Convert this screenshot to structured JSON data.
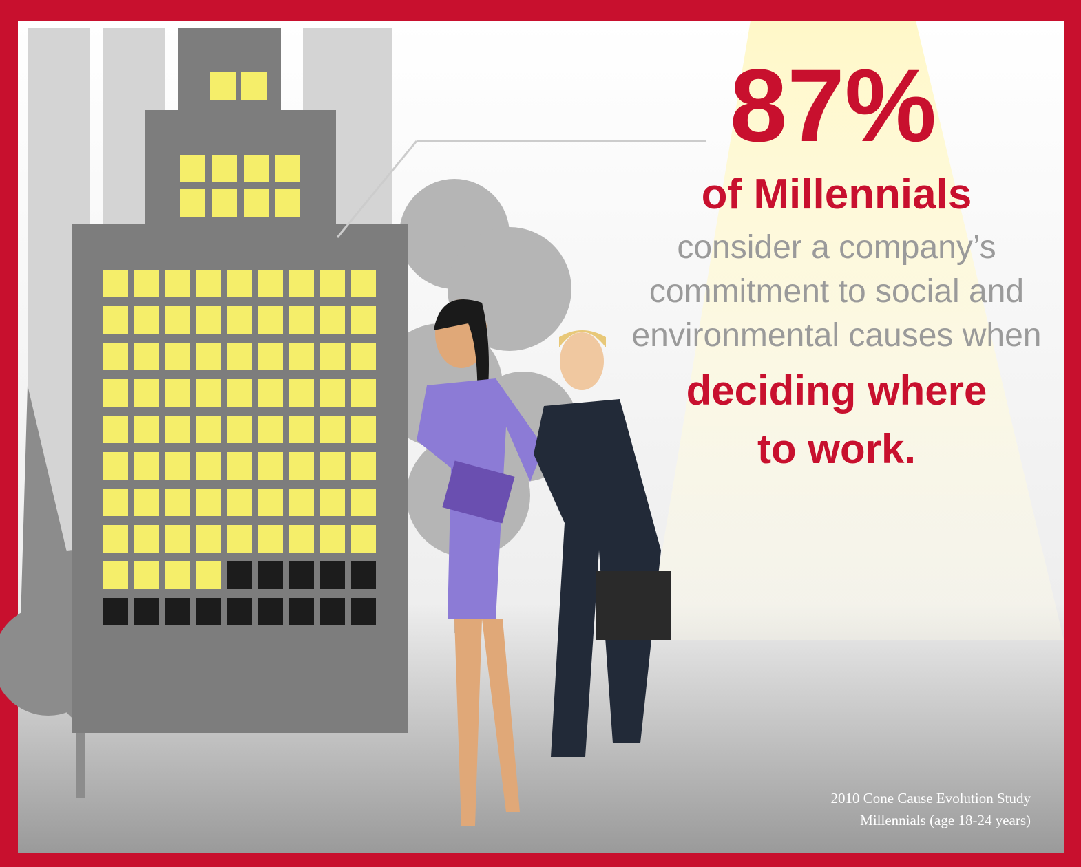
{
  "headline": {
    "stat": "87%",
    "subject": "of Millennials",
    "body_lines": [
      "consider a company’s",
      "commitment to social and",
      "environmental causes when"
    ],
    "emphasis_lines": [
      "deciding where",
      "to work."
    ]
  },
  "source": {
    "lines": [
      "2010 Cone Cause Evolution Study",
      "Millennials (age 18-24 years)"
    ]
  }
}
